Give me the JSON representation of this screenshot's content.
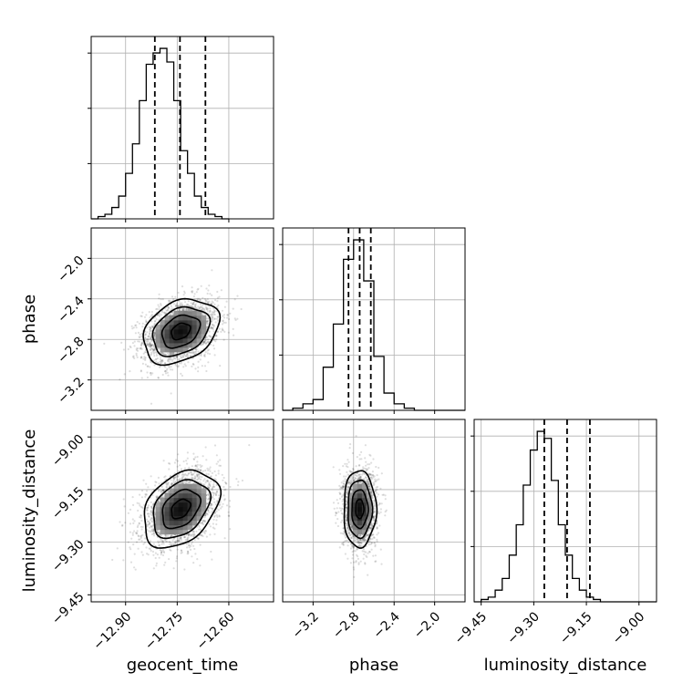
{
  "chart_data": {
    "type": "corner",
    "parameters": [
      "geocent_time",
      "phase",
      "luminosity_distance"
    ],
    "labels": {
      "geocent_time": "geocent_time",
      "phase": "phase",
      "luminosity_distance": "luminosity_distance"
    },
    "ranges": {
      "geocent_time": [
        -13.0,
        -12.47
      ],
      "phase": [
        -3.5,
        -1.7
      ],
      "luminosity_distance": [
        -9.47,
        -8.95
      ]
    },
    "ticks": {
      "geocent_time": [
        {
          "value": -12.9,
          "label": "−12.90"
        },
        {
          "value": -12.75,
          "label": "−12.75"
        },
        {
          "value": -12.6,
          "label": "−12.60"
        }
      ],
      "phase": [
        {
          "value": -3.2,
          "label": "−3.2"
        },
        {
          "value": -2.8,
          "label": "−2.8"
        },
        {
          "value": -2.4,
          "label": "−2.4"
        },
        {
          "value": -2.0,
          "label": "−2.0"
        }
      ],
      "luminosity_distance": [
        {
          "value": -9.45,
          "label": "−9.45"
        },
        {
          "value": -9.3,
          "label": "−9.30"
        },
        {
          "value": -9.15,
          "label": "−9.15"
        },
        {
          "value": -9.0,
          "label": "−9.00"
        }
      ]
    },
    "histograms": {
      "geocent_time": {
        "edges_start": -13.0,
        "bin_width": 0.02,
        "counts": [
          0,
          1,
          2,
          5,
          10,
          20,
          33,
          52,
          68,
          73,
          75,
          69,
          52,
          30,
          20,
          10,
          5,
          2,
          1,
          0
        ],
        "quantiles": [
          -12.815,
          -12.742,
          -12.668
        ]
      },
      "phase": {
        "edges_start": -3.5,
        "bin_width": 0.1,
        "counts": [
          0,
          1,
          3,
          5,
          20,
          40,
          70,
          79,
          60,
          25,
          8,
          3,
          1,
          0,
          0,
          0,
          0,
          0
        ],
        "quantiles": [
          -2.85,
          -2.74,
          -2.63
        ]
      },
      "luminosity_distance": {
        "edges_start": -9.47,
        "bin_width": 0.02,
        "counts": [
          0,
          1,
          2,
          5,
          10,
          20,
          33,
          50,
          65,
          73,
          70,
          52,
          33,
          20,
          10,
          5,
          2,
          1,
          0,
          0,
          0,
          0,
          0,
          0,
          0,
          0
        ],
        "quantiles": [
          -9.27,
          -9.205,
          -9.14
        ]
      }
    },
    "pairs": [
      {
        "x": "geocent_time",
        "y": "phase",
        "mean": [
          -12.74,
          -2.72
        ],
        "sd": [
          0.055,
          0.16
        ],
        "corr": 0.3
      },
      {
        "x": "geocent_time",
        "y": "luminosity_distance",
        "mean": [
          -12.74,
          -9.205
        ],
        "sd": [
          0.055,
          0.055
        ],
        "corr": 0.35
      },
      {
        "x": "phase",
        "y": "luminosity_distance",
        "mean": [
          -2.74,
          -9.205
        ],
        "sd": [
          0.08,
          0.055
        ],
        "corr": 0.0
      }
    ],
    "contour_levels_sigma": [
      0.5,
      1.0,
      1.5,
      2.0
    ],
    "grid": true
  }
}
